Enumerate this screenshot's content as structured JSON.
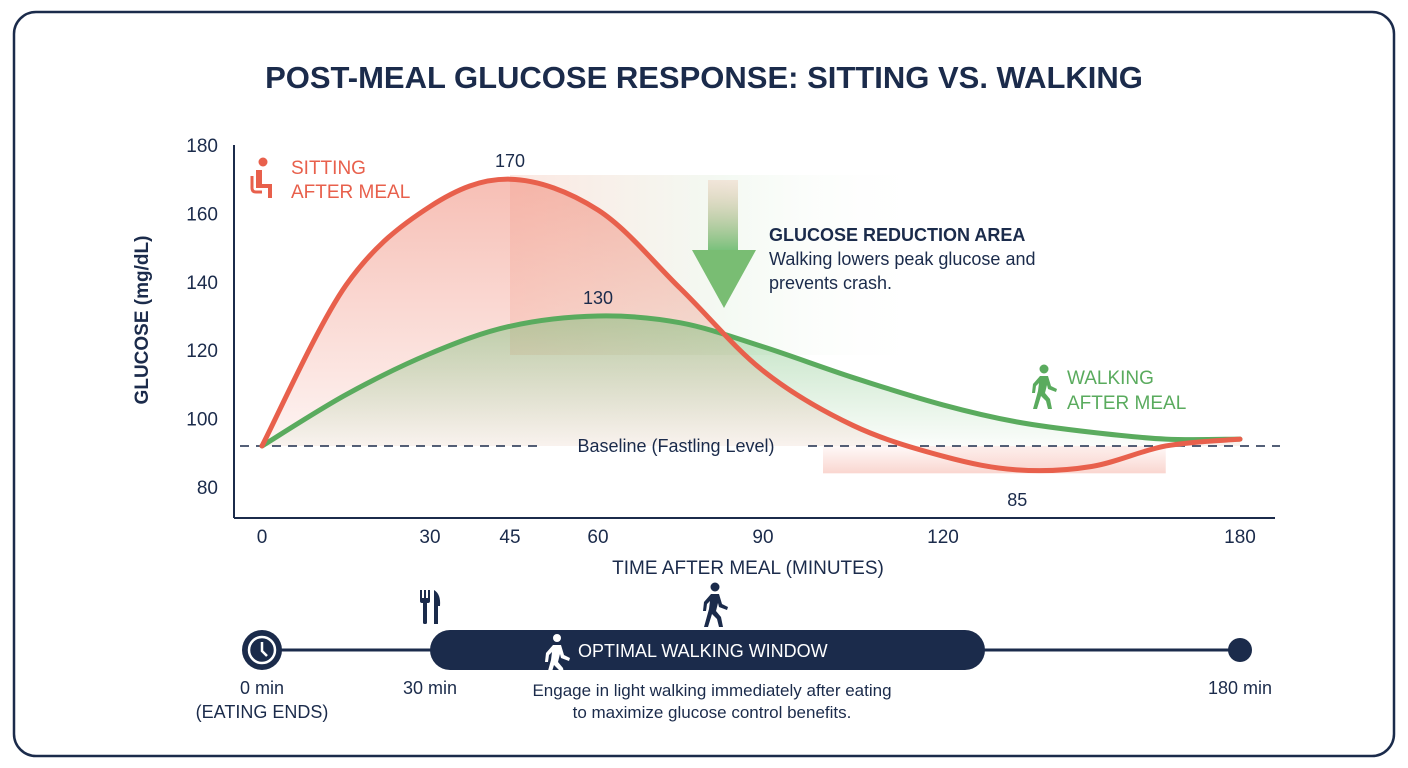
{
  "colors": {
    "navy": "#1b2b4b",
    "sitting": "#e8604c",
    "walking": "#5aab5e"
  },
  "chart_data": {
    "type": "line",
    "title": "POST-MEAL GLUCOSE RESPONSE: SITTING VS. WALKING",
    "xlabel": "TIME AFTER MEAL (MINUTES)",
    "ylabel": "GLUCOSE (mg/dL)",
    "x_ticks": [
      0,
      30,
      45,
      60,
      90,
      120,
      180
    ],
    "y_ticks": [
      80,
      100,
      120,
      140,
      160,
      180
    ],
    "xlim": [
      0,
      180
    ],
    "ylim": [
      70,
      180
    ],
    "grid": false,
    "series": [
      {
        "name": "SITTING AFTER MEAL",
        "icon": "sitting-person-icon",
        "x": [
          0,
          15,
          30,
          45,
          60,
          75,
          90,
          105,
          120,
          135,
          150,
          165,
          180
        ],
        "y": [
          92,
          139,
          162,
          170,
          161,
          138,
          114,
          98,
          89,
          85,
          86,
          92,
          94
        ]
      },
      {
        "name": "WALKING AFTER MEAL",
        "icon": "walking-person-icon",
        "x": [
          0,
          15,
          30,
          45,
          60,
          75,
          90,
          105,
          120,
          135,
          150,
          165,
          180
        ],
        "y": [
          92,
          107,
          119,
          127,
          130,
          128,
          121,
          112,
          104,
          99,
          96,
          94,
          94
        ]
      }
    ],
    "legend": [
      {
        "line1": "SITTING",
        "line2": "AFTER MEAL"
      },
      {
        "line1": "WALKING",
        "line2": "AFTER MEAL"
      }
    ],
    "baseline": {
      "value": 92,
      "label": "Baseline (Fastling Level)"
    },
    "data_labels": [
      {
        "series": "sitting",
        "x": 45,
        "y": 170,
        "text": "170"
      },
      {
        "series": "walking",
        "x": 60,
        "y": 130,
        "text": "130"
      },
      {
        "series": "sitting",
        "x": 135,
        "y": 85,
        "text": "85"
      }
    ],
    "annotation": {
      "title": "GLUCOSE REDUCTION AREA",
      "line1": "Walking lowers peak glucose and",
      "line2": "prevents crash."
    }
  },
  "timeline": {
    "start_label": "0 min",
    "start_sub": "(EATING ENDS)",
    "mid_label": "30 min",
    "end_label": "180 min",
    "window_label": "OPTIMAL WALKING WINDOW",
    "note_line1": "Engage in light walking immediately after eating",
    "note_line2": "to maximize glucose control benefits."
  }
}
